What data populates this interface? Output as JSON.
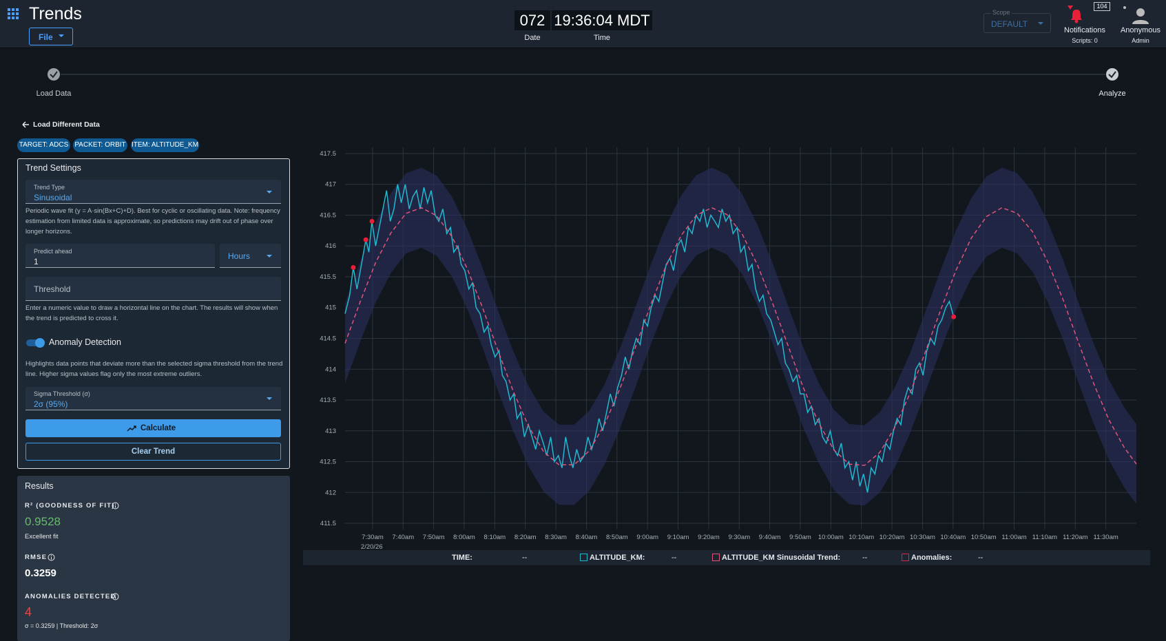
{
  "header": {
    "app_title": "Trends",
    "file_button": "File",
    "date_value": "072",
    "date_label": "Date",
    "time_value": "19:36:04 MDT",
    "time_label": "Time",
    "scope_label": "Scope",
    "scope_value": "DEFAULT",
    "notification_count": "104",
    "notifications_label": "Notifications",
    "scripts_label": "Scripts: 0",
    "user_name": "Anonymous",
    "user_role": "Admin"
  },
  "stepper": {
    "steps": [
      "Load Data",
      "Analyze"
    ]
  },
  "back_link": "Load Different Data",
  "chips": [
    "TARGET: ADCS",
    "PACKET: ORBIT",
    "ITEM: ALTITUDE_KM"
  ],
  "settings": {
    "title": "Trend Settings",
    "trend_type_label": "Trend Type",
    "trend_type_value": "Sinusoidal",
    "trend_description": "Periodic wave fit (y = A·sin(Bx+C)+D). Best for cyclic or oscillating data. Note: frequency estimation from limited data is approximate, so predictions may drift out of phase over longer horizons.",
    "predict_label": "Predict ahead",
    "predict_value": "1",
    "predict_unit": "Hours",
    "threshold_placeholder": "Threshold",
    "threshold_help": "Enter a numeric value to draw a horizontal line on the chart. The results will show when the trend is predicted to cross it.",
    "anomaly_toggle": "Anomaly Detection",
    "anomaly_help": "Highlights data points that deviate more than the selected sigma threshold from the trend line. Higher sigma values flag only the most extreme outliers.",
    "sigma_label": "Sigma Threshold (σ)",
    "sigma_value": "2σ (95%)",
    "calculate_button": "Calculate",
    "clear_button": "Clear Trend"
  },
  "results": {
    "title": "Results",
    "r2_label": "R² (GOODNESS OF FIT)",
    "r2_value": "0.9528",
    "r2_note": "Excellent fit",
    "rmse_label": "RMSE",
    "rmse_value": "0.3259",
    "anomalies_label": "ANOMALIES DETECTED",
    "anomalies_value": "4",
    "anomalies_note": "σ = 0.3259 | Threshold: 2σ"
  },
  "chart_data": {
    "type": "line",
    "grid": true,
    "xlim": [
      441,
      700
    ],
    "ylim": [
      411.4,
      417.6
    ],
    "yticks": [
      411.5,
      412,
      412.5,
      413,
      413.5,
      414,
      414.5,
      415,
      415.5,
      416,
      416.5,
      417,
      417.5
    ],
    "xticks": [
      {
        "value": 450,
        "label": "7:30am"
      },
      {
        "value": 460,
        "label": "7:40am"
      },
      {
        "value": 470,
        "label": "7:50am"
      },
      {
        "value": 480,
        "label": "8:00am"
      },
      {
        "value": 490,
        "label": "8:10am"
      },
      {
        "value": 500,
        "label": "8:20am"
      },
      {
        "value": 510,
        "label": "8:30am"
      },
      {
        "value": 520,
        "label": "8:40am"
      },
      {
        "value": 530,
        "label": "8:50am"
      },
      {
        "value": 540,
        "label": "9:00am"
      },
      {
        "value": 550,
        "label": "9:10am"
      },
      {
        "value": 560,
        "label": "9:20am"
      },
      {
        "value": 570,
        "label": "9:30am"
      },
      {
        "value": 580,
        "label": "9:40am"
      },
      {
        "value": 590,
        "label": "9:50am"
      },
      {
        "value": 600,
        "label": "10:00am"
      },
      {
        "value": 610,
        "label": "10:10am"
      },
      {
        "value": 620,
        "label": "10:20am"
      },
      {
        "value": 630,
        "label": "10:30am"
      },
      {
        "value": 640,
        "label": "10:40am"
      },
      {
        "value": 650,
        "label": "10:50am"
      },
      {
        "value": 660,
        "label": "11:00am"
      },
      {
        "value": 670,
        "label": "11:10am"
      },
      {
        "value": 680,
        "label": "11:20am"
      },
      {
        "value": 690,
        "label": "11:30am"
      }
    ],
    "x_date_label": "2/20/26",
    "time_label": "TIME:",
    "readouts": [
      "--",
      "--",
      "--",
      "--"
    ],
    "series": [
      {
        "name": "ALTITUDE_KM:",
        "color": "#22b8cf",
        "style": "solid",
        "x": [
          441,
          442.5,
          443.7,
          444.9,
          446,
          447.8,
          448.8,
          449.8,
          451,
          452.2,
          453.4,
          454.6,
          455.8,
          457,
          458.2,
          459.4,
          460.7,
          462,
          463.2,
          464.4,
          465.6,
          466.8,
          468,
          469.2,
          470.5,
          471.7,
          473,
          474.3,
          475.5,
          476.6,
          478,
          479,
          480.2,
          481.5,
          482.7,
          483.9,
          485.2,
          486.5,
          487.7,
          488.8,
          490.1,
          491.4,
          492.5,
          493.7,
          495,
          496.2,
          497.3,
          498.5,
          499.7,
          501,
          502.2,
          503.4,
          504.6,
          505.9,
          507,
          508.3,
          509.5,
          510.8,
          512,
          513.2,
          514.4,
          515.6,
          516.8,
          518,
          519.3,
          520.5,
          521.7,
          522.9,
          524.1,
          525.3,
          526.6,
          527.8,
          529,
          530.2,
          531.5,
          532.7,
          533.9,
          535.1,
          536.3,
          537.6,
          538.8,
          540,
          541.2,
          542.5,
          543.7,
          544.9,
          546.1,
          547.3,
          548.5,
          549.8,
          551,
          552.2,
          553.4,
          554.6,
          555.9,
          557.1,
          558.3,
          559.5,
          560.7,
          562,
          563.2,
          564.4,
          565.6,
          566.8,
          568,
          569.3,
          570.5,
          571.7,
          573,
          574.2,
          575.4,
          576.6,
          577.8,
          579,
          580.3,
          581.5,
          582.7,
          583.9,
          585.1,
          586.3,
          587.6,
          588.8,
          590,
          591.2,
          592.4,
          593.6,
          594.9,
          596.1,
          597.3,
          598.5,
          599.8,
          601,
          602.2,
          603.4,
          604.6,
          605.9,
          607.1,
          608.3,
          609.5,
          610.7,
          612,
          613.2,
          614.4,
          615.6,
          616.8,
          618,
          619.3,
          620.5,
          621.7,
          622.9,
          624.1,
          625.3,
          626.6,
          627.8,
          629,
          630.2,
          631.4,
          632.7,
          633.9,
          635.1,
          636.3,
          637.6,
          638.8,
          640.2
        ],
        "values": [
          414.9,
          415.2,
          415.65,
          415.3,
          415.6,
          416.1,
          415.9,
          416.4,
          416.0,
          416.3,
          416.6,
          416.9,
          416.4,
          416.6,
          417.0,
          416.7,
          417.0,
          416.6,
          416.8,
          416.9,
          416.6,
          416.95,
          416.7,
          416.9,
          416.5,
          416.4,
          416.6,
          416.2,
          416.3,
          415.9,
          416.0,
          415.7,
          415.6,
          415.3,
          415.4,
          415.0,
          414.9,
          414.6,
          414.7,
          414.4,
          414.2,
          414.3,
          413.9,
          413.8,
          413.5,
          413.6,
          413.2,
          413.3,
          412.9,
          413.1,
          412.9,
          412.7,
          413.0,
          412.8,
          412.6,
          412.9,
          412.5,
          412.6,
          412.4,
          412.9,
          412.6,
          412.4,
          412.7,
          412.5,
          412.6,
          412.9,
          412.7,
          412.9,
          413.2,
          413.0,
          413.3,
          413.6,
          413.4,
          413.7,
          413.9,
          414.2,
          414.0,
          414.3,
          414.5,
          414.4,
          414.8,
          414.7,
          415.0,
          415.2,
          415.1,
          415.4,
          415.7,
          415.8,
          415.6,
          416.0,
          416.1,
          415.9,
          416.3,
          416.2,
          416.5,
          416.4,
          416.6,
          416.3,
          416.5,
          416.4,
          416.3,
          416.6,
          416.4,
          416.5,
          416.2,
          416.3,
          415.9,
          416.0,
          415.6,
          415.7,
          415.3,
          415.1,
          415.2,
          414.9,
          414.8,
          414.6,
          414.4,
          414.5,
          414.1,
          414.0,
          413.8,
          413.9,
          413.6,
          413.6,
          413.3,
          413.4,
          413.1,
          413.2,
          412.9,
          412.8,
          413.0,
          412.7,
          412.6,
          412.8,
          412.4,
          412.5,
          412.2,
          412.5,
          412.1,
          412.3,
          412.0,
          412.4,
          412.3,
          412.6,
          412.5,
          412.8,
          412.7,
          413.0,
          413.2,
          413.1,
          413.5,
          413.7,
          413.6,
          414.0,
          414.1,
          413.9,
          414.3,
          414.5,
          414.4,
          414.7,
          414.8,
          415.0,
          415.1,
          414.85
        ]
      },
      {
        "name": "ALTITUDE_KM Sinusoidal Trend:",
        "color": "#e0557a",
        "style": "dashed",
        "band_color": "#2a3160",
        "x": [
          441,
          446,
          451,
          456,
          461,
          466,
          471,
          476,
          481,
          486,
          491,
          496,
          501,
          506,
          511,
          516,
          521,
          526,
          531,
          536,
          541,
          546,
          551,
          556,
          561,
          566,
          571,
          576,
          581,
          586,
          591,
          596,
          601,
          606,
          611,
          616,
          621,
          626,
          631,
          636,
          641,
          646,
          651,
          656,
          661,
          666,
          671,
          676,
          681,
          686,
          691,
          696,
          700
        ],
        "values": [
          414.42,
          415.1,
          415.73,
          416.21,
          416.53,
          416.62,
          416.49,
          416.15,
          415.63,
          415.0,
          414.31,
          413.65,
          413.08,
          412.66,
          412.45,
          412.45,
          412.68,
          413.11,
          413.69,
          414.35,
          415.04,
          415.67,
          416.17,
          416.5,
          416.62,
          416.51,
          416.19,
          415.69,
          415.06,
          414.38,
          413.7,
          413.13,
          412.69,
          412.46,
          412.44,
          412.65,
          413.06,
          413.62,
          414.29,
          414.97,
          415.61,
          416.13,
          416.48,
          416.62,
          416.53,
          416.23,
          415.74,
          415.13,
          414.44,
          413.77,
          413.18,
          412.73,
          412.46
        ],
        "band_upper": [
          415.07,
          415.75,
          416.38,
          416.86,
          417.18,
          417.27,
          417.14,
          416.8,
          416.28,
          415.65,
          414.96,
          414.3,
          413.73,
          413.31,
          413.1,
          413.1,
          413.33,
          413.76,
          414.34,
          415.0,
          415.69,
          416.32,
          416.82,
          417.15,
          417.27,
          417.16,
          416.84,
          416.34,
          415.71,
          415.03,
          414.35,
          413.78,
          413.34,
          413.11,
          413.09,
          413.3,
          413.71,
          414.27,
          414.94,
          415.62,
          416.26,
          416.78,
          417.13,
          417.27,
          417.18,
          416.88,
          416.39,
          415.78,
          415.09,
          414.42,
          413.83,
          413.38,
          413.11
        ],
        "band_lower": [
          413.77,
          414.45,
          415.08,
          415.56,
          415.88,
          415.97,
          415.84,
          415.5,
          414.98,
          414.35,
          413.66,
          413.0,
          412.43,
          412.01,
          411.8,
          411.8,
          412.03,
          412.46,
          413.04,
          413.7,
          414.39,
          415.02,
          415.52,
          415.85,
          415.97,
          415.86,
          415.54,
          415.04,
          414.41,
          413.73,
          413.05,
          412.48,
          412.04,
          411.81,
          411.79,
          412.0,
          412.41,
          412.97,
          413.64,
          414.32,
          414.96,
          415.48,
          415.83,
          415.97,
          415.88,
          415.58,
          415.09,
          414.48,
          413.79,
          413.12,
          412.53,
          412.08,
          411.81
        ]
      },
      {
        "name": "Anomalies:",
        "color": "#e8203a",
        "style": "points",
        "x": [
          443.7,
          447.8,
          449.8,
          640.2
        ],
        "values": [
          415.65,
          416.1,
          416.4,
          414.85
        ]
      }
    ]
  }
}
